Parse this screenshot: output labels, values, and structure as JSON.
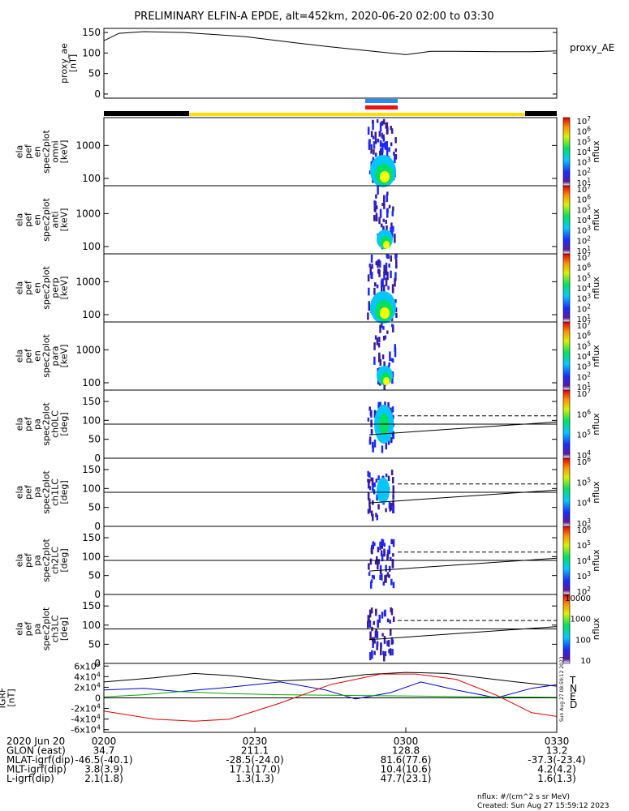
{
  "title": "PRELIMINARY ELFIN-A EPDE, alt=452km, 2020-06-20 02:00 to 03:30",
  "chart_data": [
    {
      "type": "line",
      "panel": "proxy_ae",
      "ylabel": [
        "proxy_ae",
        "[nT]"
      ],
      "legend": "proxy_AE",
      "ylim": [
        -10,
        160
      ],
      "yticks": [
        0,
        50,
        100,
        150
      ],
      "x_minutes": [
        0,
        3,
        8,
        16,
        28,
        38,
        45,
        52,
        60,
        65,
        70,
        78,
        85,
        90
      ],
      "values": [
        130,
        148,
        152,
        150,
        140,
        125,
        115,
        106,
        96,
        104,
        104,
        103,
        103,
        105
      ]
    },
    {
      "type": "heatmap",
      "panel": "ela_pef_en_spec2plot_omni",
      "ylabel": [
        "ela",
        "pef",
        "en",
        "spec2plot",
        "omni",
        "[keV]"
      ],
      "ylog": true,
      "ylim": [
        60,
        7000
      ],
      "yticks": [
        100,
        1000
      ],
      "colorbar": {
        "label": "nflux",
        "ticks": [
          "10^7",
          "10^6",
          "10^5",
          "10^4",
          "10^3",
          "10^2",
          "10^1"
        ]
      },
      "active_window_minutes": [
        54,
        60
      ]
    },
    {
      "type": "heatmap",
      "panel": "ela_pef_en_spec2plot_anti",
      "ylabel": [
        "ela",
        "pef",
        "en",
        "spec2plot",
        "anti",
        "[keV]"
      ],
      "ylog": true,
      "ylim": [
        60,
        7000
      ],
      "yticks": [
        100,
        1000
      ],
      "colorbar": {
        "label": "nflux",
        "ticks": [
          "10^7",
          "10^6",
          "10^5",
          "10^4",
          "10^3",
          "10^2",
          "10^1"
        ]
      },
      "active_window_minutes": [
        56,
        59
      ]
    },
    {
      "type": "heatmap",
      "panel": "ela_pef_en_spec2plot_perp",
      "ylabel": [
        "ela",
        "pef",
        "en",
        "spec2plot",
        "perp",
        "[keV]"
      ],
      "ylog": true,
      "ylim": [
        60,
        7000
      ],
      "yticks": [
        100,
        1000
      ],
      "colorbar": {
        "label": "nflux",
        "ticks": [
          "10^7",
          "10^6",
          "10^5",
          "10^4",
          "10^3",
          "10^2",
          "10^1"
        ]
      },
      "active_window_minutes": [
        54,
        60
      ]
    },
    {
      "type": "heatmap",
      "panel": "ela_pef_en_spec2plot_para",
      "ylabel": [
        "ela",
        "pef",
        "en",
        "spec2plot",
        "para",
        "[keV]"
      ],
      "ylog": true,
      "ylim": [
        60,
        7000
      ],
      "yticks": [
        100,
        1000
      ],
      "colorbar": {
        "label": "nflux",
        "ticks": [
          "10^7",
          "10^6",
          "10^5",
          "10^4",
          "10^3",
          "10^2",
          "10^1"
        ]
      },
      "active_window_minutes": [
        56,
        59
      ]
    },
    {
      "type": "heatmap",
      "panel": "ela_pef_pa_spec2plot_ch0LC",
      "ylabel": [
        "ela",
        "pef",
        "pa",
        "spec2plot",
        "ch0LC",
        "[deg]"
      ],
      "ylim": [
        0,
        180
      ],
      "yticks": [
        0,
        50,
        100,
        150
      ],
      "colorbar": {
        "label": "nflux",
        "ticks": [
          "10^7",
          "10^6",
          "10^5",
          "10^4"
        ]
      },
      "reference_line_deg": 90
    },
    {
      "type": "heatmap",
      "panel": "ela_pef_pa_spec2plot_ch1LC",
      "ylabel": [
        "ela",
        "pef",
        "pa",
        "spec2plot",
        "ch1LC",
        "[deg]"
      ],
      "ylim": [
        0,
        180
      ],
      "yticks": [
        0,
        50,
        100,
        150
      ],
      "colorbar": {
        "label": "nflux",
        "ticks": [
          "10^6",
          "10^5",
          "10^4",
          "10^3"
        ]
      },
      "reference_line_deg": 90
    },
    {
      "type": "heatmap",
      "panel": "ela_pef_pa_spec2plot_ch2LC",
      "ylabel": [
        "ela",
        "pef",
        "pa",
        "spec2plot",
        "ch2LC",
        "[deg]"
      ],
      "ylim": [
        0,
        180
      ],
      "yticks": [
        0,
        50,
        100,
        150
      ],
      "colorbar": {
        "label": "nflux",
        "ticks": [
          "10^6",
          "10^5",
          "10^4",
          "10^3",
          "10^2"
        ]
      },
      "reference_line_deg": 90
    },
    {
      "type": "heatmap",
      "panel": "ela_pef_pa_spec2plot_ch3LC",
      "ylabel": [
        "ela",
        "pef",
        "pa",
        "spec2plot",
        "ch3LC",
        "[deg]"
      ],
      "ylim": [
        0,
        180
      ],
      "yticks": [
        0,
        50,
        100,
        150
      ],
      "colorbar": {
        "label": "nflux",
        "ticks": [
          "10000",
          "1000",
          "100",
          "10"
        ]
      },
      "reference_line_deg": 90
    },
    {
      "type": "line",
      "panel": "IGRF",
      "ylabel": [
        "IGRF",
        "[nT]"
      ],
      "ylim": [
        -65000,
        65000
      ],
      "yticks": [
        "6x10^4",
        "4x10^4",
        "2x10^4",
        "0",
        "-2x10^4",
        "-4x10^4",
        "-6x10^4"
      ],
      "ytick_values": [
        60000,
        40000,
        20000,
        0,
        -20000,
        -40000,
        -60000
      ],
      "series": [
        {
          "name": "T",
          "color": "#000000",
          "x_minutes": [
            0,
            10,
            18,
            25,
            35,
            45,
            52,
            60,
            68,
            75,
            82,
            90
          ],
          "values": [
            30000,
            38000,
            46000,
            42000,
            32000,
            36000,
            44000,
            48000,
            46000,
            38000,
            30000,
            22000
          ]
        },
        {
          "name": "N",
          "color": "#0000cc",
          "x_minutes": [
            0,
            8,
            15,
            25,
            35,
            44,
            50,
            57,
            63,
            70,
            78,
            85,
            90
          ],
          "values": [
            15000,
            18000,
            12000,
            20000,
            30000,
            15000,
            -2000,
            10000,
            30000,
            15000,
            0,
            18000,
            25000
          ]
        },
        {
          "name": "E",
          "color": "#00aa00",
          "x_minutes": [
            0,
            8,
            15,
            25,
            35,
            45,
            55,
            65,
            75,
            90
          ],
          "values": [
            2000,
            6000,
            12000,
            8000,
            6000,
            5000,
            4000,
            3000,
            2000,
            1000
          ]
        },
        {
          "name": "D",
          "color": "#dd0000",
          "x_minutes": [
            0,
            10,
            18,
            25,
            35,
            45,
            55,
            62,
            70,
            78,
            85,
            90
          ],
          "values": [
            -25000,
            -40000,
            -44000,
            -40000,
            -10000,
            25000,
            45000,
            45000,
            35000,
            5000,
            -28000,
            -35000
          ]
        }
      ]
    }
  ],
  "bottom_axis": {
    "rows": [
      {
        "label": "2020 Jun 20",
        "values": [
          "0200",
          "0230",
          "0300",
          "0330"
        ]
      },
      {
        "label": "GLON (east)",
        "values": [
          "34.7",
          "211.1",
          "128.8",
          "13.2"
        ]
      },
      {
        "label": "MLAT-igrf(dip)",
        "values": [
          "-46.5(-40.1)",
          "-28.5(-24.0)",
          "81.6(77.6)",
          "-37.3(-23.4)"
        ]
      },
      {
        "label": "MLT-igrf(dip)",
        "values": [
          "3.8(3.9)",
          "17.1(17.0)",
          "10.4(10.6)",
          "4.2(4.2)"
        ]
      },
      {
        "label": "L-igrf(dip)",
        "values": [
          "2.1(1.8)",
          "1.3(1.3)",
          "47.7(23.1)",
          "1.6(1.3)"
        ]
      }
    ]
  },
  "footer": {
    "units": "nflux: #/(cm^2 s sr MeV)",
    "created": "Created: Sun Aug 27 15:59:12 2023",
    "side_stamp": "Sun Aug 27 08:59:12 2023"
  },
  "colors": {
    "spec_high": "#ffff00",
    "status_bar_black": "#000000",
    "status_bar_yellow": "#ffdd00",
    "marker_blue": "#1e90ff",
    "marker_red": "#ee1111"
  }
}
